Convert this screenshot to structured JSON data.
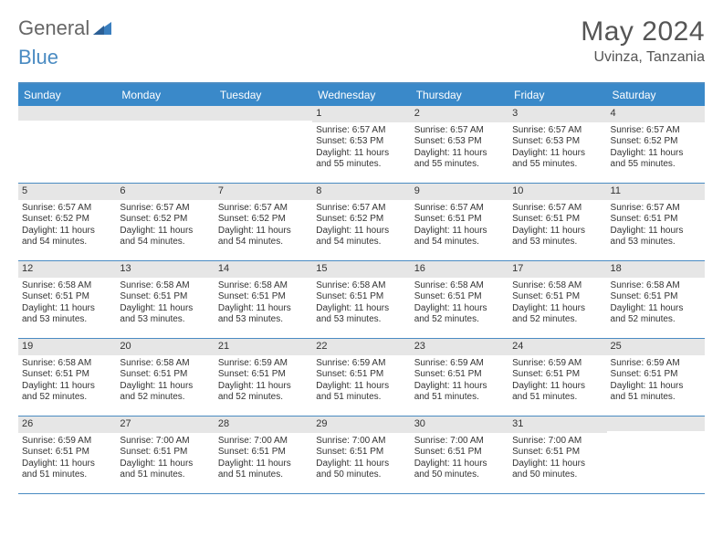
{
  "brand": {
    "part1": "General",
    "part2": "Blue"
  },
  "title": "May 2024",
  "location": "Uvinza, Tanzania",
  "colors": {
    "header_bg": "#3a89c9",
    "header_text": "#ffffff",
    "rule": "#4a8bc2",
    "daynum_bg": "#e6e6e6",
    "body_text": "#333333",
    "page_bg": "#ffffff"
  },
  "day_headers": [
    "Sunday",
    "Monday",
    "Tuesday",
    "Wednesday",
    "Thursday",
    "Friday",
    "Saturday"
  ],
  "weeks": [
    [
      {
        "n": "",
        "l1": "",
        "l2": "",
        "l3": "",
        "l4": ""
      },
      {
        "n": "",
        "l1": "",
        "l2": "",
        "l3": "",
        "l4": ""
      },
      {
        "n": "",
        "l1": "",
        "l2": "",
        "l3": "",
        "l4": ""
      },
      {
        "n": "1",
        "l1": "Sunrise: 6:57 AM",
        "l2": "Sunset: 6:53 PM",
        "l3": "Daylight: 11 hours",
        "l4": "and 55 minutes."
      },
      {
        "n": "2",
        "l1": "Sunrise: 6:57 AM",
        "l2": "Sunset: 6:53 PM",
        "l3": "Daylight: 11 hours",
        "l4": "and 55 minutes."
      },
      {
        "n": "3",
        "l1": "Sunrise: 6:57 AM",
        "l2": "Sunset: 6:53 PM",
        "l3": "Daylight: 11 hours",
        "l4": "and 55 minutes."
      },
      {
        "n": "4",
        "l1": "Sunrise: 6:57 AM",
        "l2": "Sunset: 6:52 PM",
        "l3": "Daylight: 11 hours",
        "l4": "and 55 minutes."
      }
    ],
    [
      {
        "n": "5",
        "l1": "Sunrise: 6:57 AM",
        "l2": "Sunset: 6:52 PM",
        "l3": "Daylight: 11 hours",
        "l4": "and 54 minutes."
      },
      {
        "n": "6",
        "l1": "Sunrise: 6:57 AM",
        "l2": "Sunset: 6:52 PM",
        "l3": "Daylight: 11 hours",
        "l4": "and 54 minutes."
      },
      {
        "n": "7",
        "l1": "Sunrise: 6:57 AM",
        "l2": "Sunset: 6:52 PM",
        "l3": "Daylight: 11 hours",
        "l4": "and 54 minutes."
      },
      {
        "n": "8",
        "l1": "Sunrise: 6:57 AM",
        "l2": "Sunset: 6:52 PM",
        "l3": "Daylight: 11 hours",
        "l4": "and 54 minutes."
      },
      {
        "n": "9",
        "l1": "Sunrise: 6:57 AM",
        "l2": "Sunset: 6:51 PM",
        "l3": "Daylight: 11 hours",
        "l4": "and 54 minutes."
      },
      {
        "n": "10",
        "l1": "Sunrise: 6:57 AM",
        "l2": "Sunset: 6:51 PM",
        "l3": "Daylight: 11 hours",
        "l4": "and 53 minutes."
      },
      {
        "n": "11",
        "l1": "Sunrise: 6:57 AM",
        "l2": "Sunset: 6:51 PM",
        "l3": "Daylight: 11 hours",
        "l4": "and 53 minutes."
      }
    ],
    [
      {
        "n": "12",
        "l1": "Sunrise: 6:58 AM",
        "l2": "Sunset: 6:51 PM",
        "l3": "Daylight: 11 hours",
        "l4": "and 53 minutes."
      },
      {
        "n": "13",
        "l1": "Sunrise: 6:58 AM",
        "l2": "Sunset: 6:51 PM",
        "l3": "Daylight: 11 hours",
        "l4": "and 53 minutes."
      },
      {
        "n": "14",
        "l1": "Sunrise: 6:58 AM",
        "l2": "Sunset: 6:51 PM",
        "l3": "Daylight: 11 hours",
        "l4": "and 53 minutes."
      },
      {
        "n": "15",
        "l1": "Sunrise: 6:58 AM",
        "l2": "Sunset: 6:51 PM",
        "l3": "Daylight: 11 hours",
        "l4": "and 53 minutes."
      },
      {
        "n": "16",
        "l1": "Sunrise: 6:58 AM",
        "l2": "Sunset: 6:51 PM",
        "l3": "Daylight: 11 hours",
        "l4": "and 52 minutes."
      },
      {
        "n": "17",
        "l1": "Sunrise: 6:58 AM",
        "l2": "Sunset: 6:51 PM",
        "l3": "Daylight: 11 hours",
        "l4": "and 52 minutes."
      },
      {
        "n": "18",
        "l1": "Sunrise: 6:58 AM",
        "l2": "Sunset: 6:51 PM",
        "l3": "Daylight: 11 hours",
        "l4": "and 52 minutes."
      }
    ],
    [
      {
        "n": "19",
        "l1": "Sunrise: 6:58 AM",
        "l2": "Sunset: 6:51 PM",
        "l3": "Daylight: 11 hours",
        "l4": "and 52 minutes."
      },
      {
        "n": "20",
        "l1": "Sunrise: 6:58 AM",
        "l2": "Sunset: 6:51 PM",
        "l3": "Daylight: 11 hours",
        "l4": "and 52 minutes."
      },
      {
        "n": "21",
        "l1": "Sunrise: 6:59 AM",
        "l2": "Sunset: 6:51 PM",
        "l3": "Daylight: 11 hours",
        "l4": "and 52 minutes."
      },
      {
        "n": "22",
        "l1": "Sunrise: 6:59 AM",
        "l2": "Sunset: 6:51 PM",
        "l3": "Daylight: 11 hours",
        "l4": "and 51 minutes."
      },
      {
        "n": "23",
        "l1": "Sunrise: 6:59 AM",
        "l2": "Sunset: 6:51 PM",
        "l3": "Daylight: 11 hours",
        "l4": "and 51 minutes."
      },
      {
        "n": "24",
        "l1": "Sunrise: 6:59 AM",
        "l2": "Sunset: 6:51 PM",
        "l3": "Daylight: 11 hours",
        "l4": "and 51 minutes."
      },
      {
        "n": "25",
        "l1": "Sunrise: 6:59 AM",
        "l2": "Sunset: 6:51 PM",
        "l3": "Daylight: 11 hours",
        "l4": "and 51 minutes."
      }
    ],
    [
      {
        "n": "26",
        "l1": "Sunrise: 6:59 AM",
        "l2": "Sunset: 6:51 PM",
        "l3": "Daylight: 11 hours",
        "l4": "and 51 minutes."
      },
      {
        "n": "27",
        "l1": "Sunrise: 7:00 AM",
        "l2": "Sunset: 6:51 PM",
        "l3": "Daylight: 11 hours",
        "l4": "and 51 minutes."
      },
      {
        "n": "28",
        "l1": "Sunrise: 7:00 AM",
        "l2": "Sunset: 6:51 PM",
        "l3": "Daylight: 11 hours",
        "l4": "and 51 minutes."
      },
      {
        "n": "29",
        "l1": "Sunrise: 7:00 AM",
        "l2": "Sunset: 6:51 PM",
        "l3": "Daylight: 11 hours",
        "l4": "and 50 minutes."
      },
      {
        "n": "30",
        "l1": "Sunrise: 7:00 AM",
        "l2": "Sunset: 6:51 PM",
        "l3": "Daylight: 11 hours",
        "l4": "and 50 minutes."
      },
      {
        "n": "31",
        "l1": "Sunrise: 7:00 AM",
        "l2": "Sunset: 6:51 PM",
        "l3": "Daylight: 11 hours",
        "l4": "and 50 minutes."
      },
      {
        "n": "",
        "l1": "",
        "l2": "",
        "l3": "",
        "l4": ""
      }
    ]
  ]
}
